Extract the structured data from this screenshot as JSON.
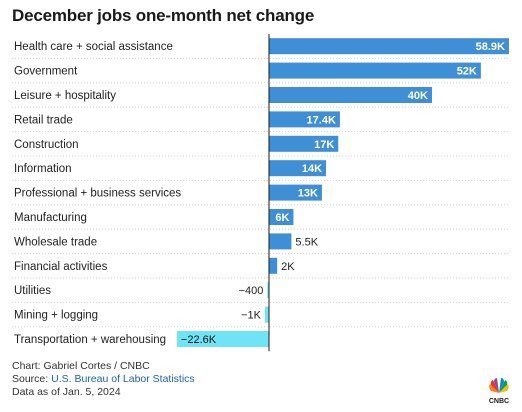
{
  "chart_data": {
    "type": "bar",
    "orientation": "horizontal",
    "title": "December jobs one-month net change",
    "categories": [
      "Health care + social assistance",
      "Government",
      "Leisure + hospitality",
      "Retail trade",
      "Construction",
      "Information",
      "Professional + business services",
      "Manufacturing",
      "Wholesale trade",
      "Financial activities",
      "Utilities",
      "Mining + logging",
      "Transportation + warehousing"
    ],
    "values": [
      58900,
      52000,
      40000,
      17400,
      17000,
      14000,
      13000,
      6000,
      5500,
      2000,
      -400,
      -1000,
      -22600
    ],
    "value_labels": [
      "58.9K",
      "52K",
      "40K",
      "17.4K",
      "17K",
      "14K",
      "13K",
      "6K",
      "5.5K",
      "2K",
      "−400",
      "−1K",
      "−22.6K"
    ],
    "colors": {
      "positive": "#3f8fd6",
      "negative": "#6ee4f5"
    }
  },
  "footer": {
    "credit": "Chart: Gabriel Cortes / CNBC",
    "source_prefix": "Source: ",
    "source_link": "U.S. Bureau of Labor Statistics",
    "date_note": "Data as of Jan. 5, 2024"
  },
  "logo": {
    "icon": "cnbc-peacock-icon",
    "text": "CNBC"
  }
}
